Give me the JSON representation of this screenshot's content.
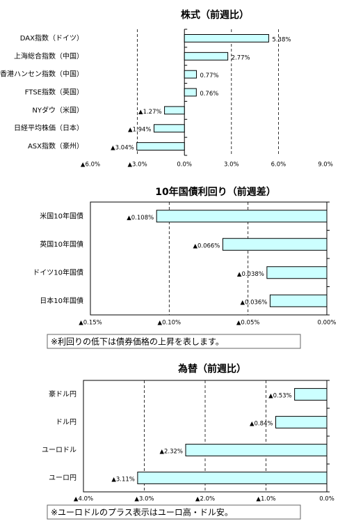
{
  "chart_data": [
    {
      "type": "hbar",
      "title": "株式（前週比）",
      "categories": [
        "DAX指数（ドイツ）",
        "上海総合指数（中国）",
        "香港ハンセン指数（中国）",
        "FTSE指数（英国）",
        "NYダウ（米国）",
        "日経平均株価（日本）",
        "ASX指数（豪州）"
      ],
      "values": [
        5.38,
        2.77,
        0.77,
        0.76,
        -1.27,
        -1.94,
        -3.04
      ],
      "value_labels": [
        "5.38%",
        "2.77%",
        "0.77%",
        "0.76%",
        "▲1.27%",
        "▲1.94%",
        "▲3.04%"
      ],
      "color": "#ccffff",
      "negative_color": "#ff0000",
      "xlim": [
        -6,
        9
      ],
      "xticks": [
        {
          "value": -6,
          "label": "▲6.0%"
        },
        {
          "value": -3,
          "label": "▲3.0%"
        },
        {
          "value": 0,
          "label": "0.0%"
        },
        {
          "value": 3,
          "label": "3.0%"
        },
        {
          "value": 6,
          "label": "6.0%"
        },
        {
          "value": 9,
          "label": "9.0%"
        }
      ],
      "grid": true
    },
    {
      "type": "hbar",
      "title": "10年国債利回り（前週差）",
      "categories": [
        "米国10年国債",
        "英国10年国債",
        "ドイツ10年国債",
        "日本10年国債"
      ],
      "values": [
        -0.108,
        -0.066,
        -0.038,
        -0.036
      ],
      "value_labels": [
        "▲0.108%",
        "▲0.066%",
        "▲0.038%",
        "▲0.036%"
      ],
      "color": "#ccffff",
      "negative_color": "#ff0000",
      "xlim": [
        -0.15,
        0
      ],
      "xticks": [
        {
          "value": -0.15,
          "label": "▲0.15%"
        },
        {
          "value": -0.1,
          "label": "▲0.10%"
        },
        {
          "value": -0.05,
          "label": "▲0.05%"
        },
        {
          "value": 0,
          "label": "0.00%"
        }
      ],
      "grid": true,
      "note": "※利回りの低下は債券価格の上昇を表します。"
    },
    {
      "type": "hbar",
      "title": "為替（前週比）",
      "categories": [
        "豪ドル円",
        "ドル円",
        "ユーロドル",
        "ユーロ円"
      ],
      "values": [
        -0.53,
        -0.84,
        -2.32,
        -3.11
      ],
      "value_labels": [
        "▲0.53%",
        "▲0.84%",
        "▲2.32%",
        "▲3.11%"
      ],
      "color": "#ccffff",
      "negative_color": "#ff0000",
      "xlim": [
        -4,
        0
      ],
      "xticks": [
        {
          "value": -4,
          "label": "▲4.0%"
        },
        {
          "value": -3,
          "label": "▲3.0%"
        },
        {
          "value": -2,
          "label": "▲2.0%"
        },
        {
          "value": -1,
          "label": "▲1.0%"
        },
        {
          "value": 0,
          "label": "0.0%"
        }
      ],
      "grid": true,
      "note": "※ユーロドルのプラス表示はユーロ高・ドル安。"
    }
  ]
}
